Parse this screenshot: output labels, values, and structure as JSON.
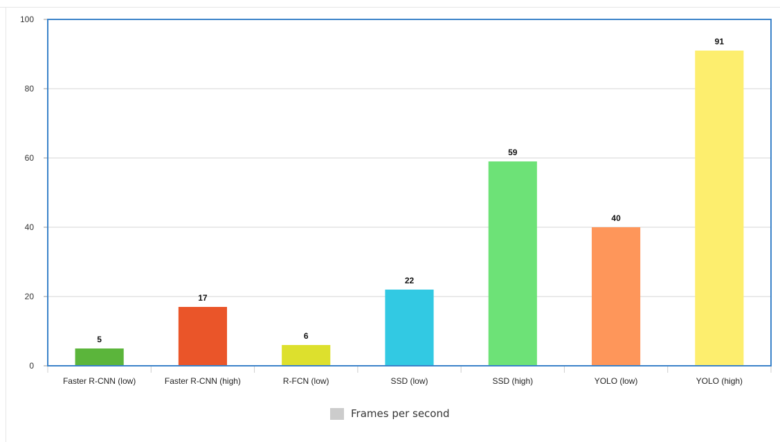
{
  "chart_data": {
    "type": "bar",
    "categories": [
      "Faster R-CNN (low)",
      "Faster R-CNN (high)",
      "R-FCN (low)",
      "SSD (low)",
      "SSD (high)",
      "YOLO (low)",
      "YOLO (high)"
    ],
    "series": [
      {
        "name": "Frames per second",
        "values": [
          5,
          17,
          6,
          22,
          59,
          40,
          91
        ]
      }
    ],
    "data_labels": [
      "5",
      "17",
      "6",
      "22",
      "59",
      "40",
      "91"
    ],
    "bar_colors": [
      "#5bb53b",
      "#ea5529",
      "#dde02d",
      "#32c9e3",
      "#6de277",
      "#fe965a",
      "#fdee6e"
    ],
    "ylim": [
      0,
      100
    ],
    "yticks": [
      0,
      20,
      40,
      60,
      80,
      100
    ],
    "ytick_labels": [
      "0",
      "20",
      "40",
      "60",
      "80",
      "100"
    ],
    "grid": true,
    "legend_position": "bottom-center",
    "legend_color": "#cccccc",
    "plot_border_color": "#3a82c9"
  },
  "legend": {
    "label": "Frames per second"
  }
}
